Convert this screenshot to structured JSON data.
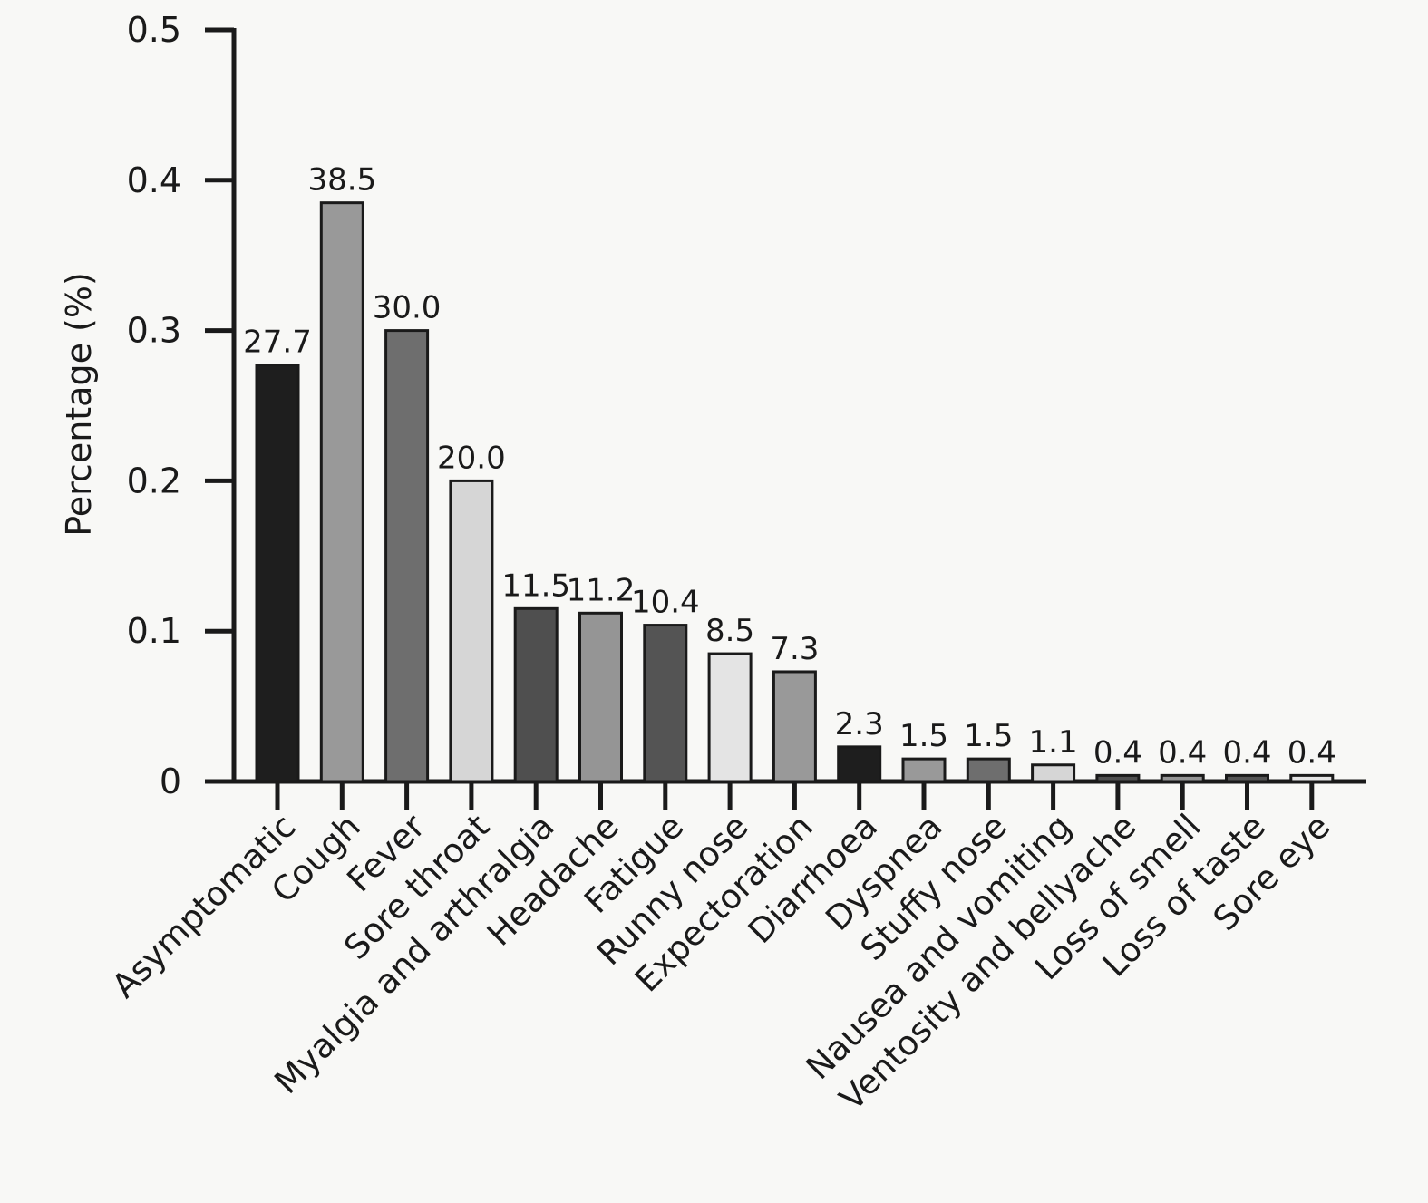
{
  "chart_data": {
    "type": "bar",
    "title": "",
    "xlabel": "",
    "ylabel": "Percentage (%)",
    "ylim": [
      0,
      0.5
    ],
    "yticks": [
      {
        "value": 0,
        "label": "0"
      },
      {
        "value": 0.1,
        "label": "0.1"
      },
      {
        "value": 0.2,
        "label": "0.2"
      },
      {
        "value": 0.3,
        "label": "0.3"
      },
      {
        "value": 0.4,
        "label": "0.4"
      },
      {
        "value": 0.5,
        "label": "0.5"
      }
    ],
    "grid": false,
    "categories": [
      "Asymptomatic",
      "Cough",
      "Fever",
      "Sore throat",
      "Myalgia and arthralgia",
      "Headache",
      "Fatigue",
      "Runny nose",
      "Expectoration",
      "Diarrhoea",
      "Dyspnea",
      "Stuffy nose",
      "Nausea and vomiting",
      "Ventosity and bellyache",
      "Loss of smell",
      "Loss of taste",
      "Sore eye"
    ],
    "values": [
      0.277,
      0.385,
      0.3,
      0.2,
      0.115,
      0.112,
      0.104,
      0.085,
      0.073,
      0.023,
      0.015,
      0.015,
      0.011,
      0.004,
      0.004,
      0.004,
      0.004
    ],
    "data_labels": [
      "27.7",
      "38.5",
      "30.0",
      "20.0",
      "11.5",
      "11.2",
      "10.4",
      "8.5",
      "7.3",
      "2.3",
      "1.5",
      "1.5",
      "1.1",
      "0.4",
      "0.4",
      "0.4",
      "0.4"
    ],
    "bar_colors": [
      "#1e1e1e",
      "#999999",
      "#6e6e6e",
      "#d6d6d6",
      "#4f4f4f",
      "#959595",
      "#545454",
      "#e4e4e4",
      "#999999",
      "#1e1e1e",
      "#999999",
      "#6e6e6e",
      "#d6d6d6",
      "#4f4f4f",
      "#959595",
      "#545454",
      "#e4e4e4"
    ]
  }
}
